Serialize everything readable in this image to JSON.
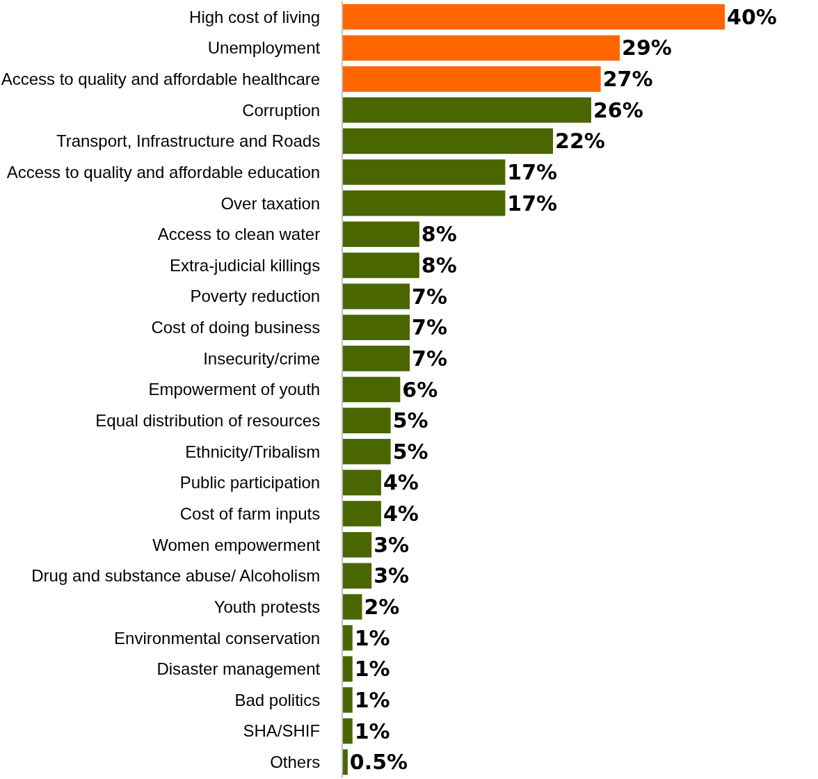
{
  "chart_data": {
    "type": "bar",
    "orientation": "horizontal",
    "categories": [
      "High cost of living",
      "Unemployment",
      "Access to quality and affordable healthcare",
      "Corruption",
      "Transport, Infrastructure and Roads",
      "Access to quality and affordable education",
      "Over taxation",
      "Access to clean water",
      "Extra-judicial killings",
      "Poverty reduction",
      "Cost of doing business",
      "Insecurity/crime",
      "Empowerment of youth",
      "Equal distribution of resources",
      "Ethnicity/Tribalism",
      "Public participation",
      "Cost of farm inputs",
      "Women empowerment",
      "Drug and substance abuse/ Alcoholism",
      "Youth protests",
      "Environmental conservation",
      "Disaster management",
      "Bad politics",
      "SHA/SHIF",
      "Others"
    ],
    "values": [
      40,
      29,
      27,
      26,
      22,
      17,
      17,
      8,
      8,
      7,
      7,
      7,
      6,
      5,
      5,
      4,
      4,
      3,
      3,
      2,
      1,
      1,
      1,
      1,
      0.5
    ],
    "value_labels": [
      "40%",
      "29%",
      "27%",
      "26%",
      "22%",
      "17%",
      "17%",
      "8%",
      "8%",
      "7%",
      "7%",
      "7%",
      "6%",
      "5%",
      "5%",
      "4%",
      "4%",
      "3%",
      "3%",
      "2%",
      "1%",
      "1%",
      "1%",
      "1%",
      "0.5%"
    ],
    "colors": [
      "#ff6600",
      "#ff6600",
      "#ff6600",
      "#4a6600",
      "#4a6600",
      "#4a6600",
      "#4a6600",
      "#4a6600",
      "#4a6600",
      "#4a6600",
      "#4a6600",
      "#4a6600",
      "#4a6600",
      "#4a6600",
      "#4a6600",
      "#4a6600",
      "#4a6600",
      "#4a6600",
      "#4a6600",
      "#4a6600",
      "#4a6600",
      "#4a6600",
      "#4a6600",
      "#4a6600",
      "#4a6600"
    ]
  }
}
